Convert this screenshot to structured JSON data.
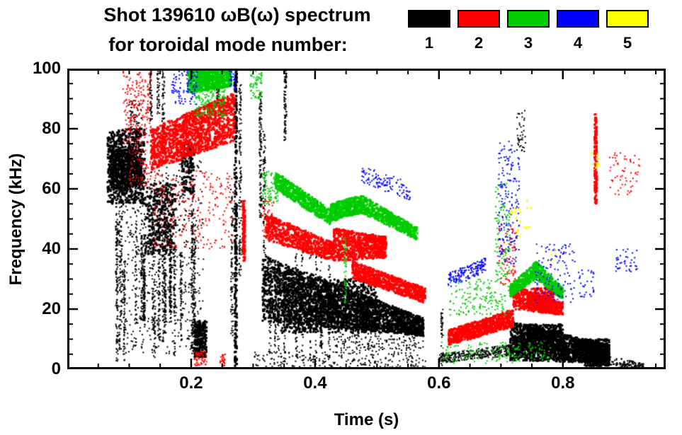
{
  "header": {
    "title_line1": "Shot 139610 ωB(ω) spectrum",
    "title_line2": "for toroidal mode number:"
  },
  "legend": {
    "items": [
      {
        "label": "1",
        "color": "#000000"
      },
      {
        "label": "2",
        "color": "#ff0000"
      },
      {
        "label": "3",
        "color": "#00cc00"
      },
      {
        "label": "4",
        "color": "#0000ff"
      },
      {
        "label": "5",
        "color": "#ffff00"
      }
    ]
  },
  "chart_data": {
    "type": "scatter",
    "title": "Shot 139610 ωB(ω) spectrum for toroidal mode number: 1 2 3 4 5",
    "xlabel": "Time (s)",
    "ylabel": "Frequency (kHz)",
    "xlim": [
      0.0,
      0.966
    ],
    "ylim": [
      0,
      100
    ],
    "xticks": {
      "major": [
        0.2,
        0.4,
        0.6,
        0.8
      ],
      "labels": [
        "0.2",
        "0.4",
        "0.6",
        "0.8"
      ],
      "minor_step": 0.05
    },
    "yticks": {
      "major": [
        0,
        20,
        40,
        60,
        80,
        100
      ],
      "labels": [
        "0",
        "20",
        "40",
        "60",
        "80",
        "100"
      ],
      "minor_step": 5
    },
    "modes": [
      {
        "n": 1,
        "color": "#000000"
      },
      {
        "n": 2,
        "color": "#ff0000"
      },
      {
        "n": 3,
        "color": "#00cc00"
      },
      {
        "n": 4,
        "color": "#0000ff"
      },
      {
        "n": 5,
        "color": "#ffff00"
      }
    ],
    "features": [
      {
        "mode": 1,
        "shape": "scatter",
        "t": [
          0.065,
          0.125
        ],
        "f": [
          55,
          80
        ],
        "n": 700,
        "s": 3
      },
      {
        "mode": 1,
        "shape": "scatter",
        "t": [
          0.07,
          0.12
        ],
        "f": [
          60,
          73
        ],
        "n": 500,
        "s": 3
      },
      {
        "mode": 1,
        "shape": "vlines",
        "t": [
          0.075,
          0.215
        ],
        "lines": 22,
        "fmin": [
          2,
          18
        ],
        "fmax": [
          35,
          78
        ],
        "ppl": 70,
        "s": 2
      },
      {
        "mode": 1,
        "shape": "scatter",
        "t": [
          0.08,
          0.22
        ],
        "f": [
          5,
          70
        ],
        "n": 600,
        "s": 2
      },
      {
        "mode": 1,
        "shape": "scatter",
        "t": [
          0.125,
          0.175
        ],
        "f": [
          38,
          62
        ],
        "n": 350,
        "s": 3
      },
      {
        "mode": 1,
        "shape": "vline",
        "t": 0.135,
        "f": [
          82,
          100
        ],
        "n": 60,
        "s": 2
      },
      {
        "mode": 1,
        "shape": "vline",
        "t": 0.155,
        "f": [
          80,
          100
        ],
        "n": 50,
        "s": 2
      },
      {
        "mode": 1,
        "shape": "vline",
        "t": 0.147,
        "f": [
          85,
          100
        ],
        "n": 40,
        "s": 2
      },
      {
        "mode": 1,
        "shape": "scatter",
        "t": [
          0.185,
          0.205
        ],
        "f": [
          58,
          75
        ],
        "n": 150,
        "s": 3
      },
      {
        "mode": 1,
        "shape": "scatter",
        "t": [
          0.205,
          0.225
        ],
        "f": [
          4,
          16
        ],
        "n": 260,
        "s": 3
      },
      {
        "mode": 1,
        "shape": "vline",
        "t": 0.243,
        "f": [
          88,
          100
        ],
        "n": 50,
        "s": 2
      },
      {
        "mode": 1,
        "shape": "vline",
        "t": 0.272,
        "f": [
          0,
          100
        ],
        "n": 280,
        "s": 3
      },
      {
        "mode": 1,
        "shape": "vline",
        "t": 0.279,
        "f": [
          30,
          95
        ],
        "n": 120,
        "s": 2
      },
      {
        "mode": 1,
        "shape": "vline",
        "t": 0.266,
        "f": [
          10,
          60
        ],
        "n": 80,
        "s": 2
      },
      {
        "mode": 1,
        "shape": "vline",
        "t": 0.312,
        "f": [
          50,
          92
        ],
        "n": 130,
        "s": 2
      },
      {
        "mode": 1,
        "shape": "vline",
        "t": 0.318,
        "f": [
          30,
          80
        ],
        "n": 80,
        "s": 2
      },
      {
        "mode": 1,
        "shape": "vline",
        "t": 0.352,
        "f": [
          76,
          100
        ],
        "n": 90,
        "s": 2
      },
      {
        "mode": 1,
        "shape": "band",
        "t": [
          0.315,
          0.575
        ],
        "flo": [
          16,
          11
        ],
        "fhi": [
          38,
          17
        ],
        "n": 2600,
        "s": 3
      },
      {
        "mode": 1,
        "shape": "scatter",
        "t": [
          0.345,
          0.5
        ],
        "f": [
          12,
          30
        ],
        "n": 900,
        "s": 3
      },
      {
        "mode": 1,
        "shape": "vlines",
        "t": [
          0.32,
          0.43
        ],
        "lines": 12,
        "fmin": [
          2,
          8
        ],
        "fmax": [
          25,
          40
        ],
        "ppl": 40,
        "s": 2
      },
      {
        "mode": 1,
        "shape": "scatter",
        "t": [
          0.3,
          0.58
        ],
        "f": [
          0,
          6
        ],
        "n": 260,
        "s": 2
      },
      {
        "mode": 1,
        "shape": "scatter",
        "t": [
          0.43,
          0.575
        ],
        "f": [
          6,
          13
        ],
        "n": 200,
        "s": 2
      },
      {
        "mode": 1,
        "shape": "band",
        "t": [
          0.6,
          0.74
        ],
        "flo": [
          2,
          5
        ],
        "fhi": [
          5,
          9
        ],
        "n": 420,
        "s": 2
      },
      {
        "mode": 1,
        "shape": "band",
        "t": [
          0.715,
          0.875
        ],
        "flo": [
          3,
          2
        ],
        "fhi": [
          16,
          8
        ],
        "n": 1600,
        "s": 3
      },
      {
        "mode": 1,
        "shape": "scatter",
        "t": [
          0.73,
          0.8
        ],
        "f": [
          6,
          15
        ],
        "n": 500,
        "s": 3
      },
      {
        "mode": 1,
        "shape": "scatter",
        "t": [
          0.835,
          0.875
        ],
        "f": [
          1,
          10
        ],
        "n": 400,
        "s": 3
      },
      {
        "mode": 1,
        "shape": "band",
        "t": [
          0.86,
          0.93
        ],
        "flo": [
          0.5,
          0.5
        ],
        "fhi": [
          5,
          2
        ],
        "n": 150,
        "s": 2
      },
      {
        "mode": 1,
        "shape": "scatter",
        "t": [
          0.725,
          0.74
        ],
        "f": [
          72,
          86
        ],
        "n": 40,
        "s": 2
      },
      {
        "mode": 1,
        "shape": "vline",
        "t": 0.605,
        "f": [
          1,
          20
        ],
        "n": 40,
        "s": 2
      },
      {
        "mode": 1,
        "shape": "scatter",
        "t": [
          0.1,
          0.12
        ],
        "f": [
          78,
          90
        ],
        "n": 60,
        "s": 2
      },
      {
        "mode": 2,
        "shape": "scatter",
        "t": [
          0.09,
          0.135
        ],
        "f": [
          75,
          100
        ],
        "n": 200,
        "s": 2
      },
      {
        "mode": 2,
        "shape": "band",
        "t": [
          0.135,
          0.27
        ],
        "flo": [
          66,
          76
        ],
        "fhi": [
          80,
          92
        ],
        "n": 1400,
        "s": 3
      },
      {
        "mode": 2,
        "shape": "scatter",
        "t": [
          0.14,
          0.27
        ],
        "f": [
          40,
          66
        ],
        "n": 250,
        "s": 2
      },
      {
        "mode": 2,
        "shape": "scatter",
        "t": [
          0.1,
          0.14
        ],
        "f": [
          60,
          75
        ],
        "n": 80,
        "s": 2
      },
      {
        "mode": 2,
        "shape": "vline",
        "t": 0.285,
        "f": [
          36,
          56
        ],
        "n": 140,
        "s": 3
      },
      {
        "mode": 2,
        "shape": "band",
        "t": [
          0.32,
          0.43
        ],
        "flo": [
          43,
          36
        ],
        "fhi": [
          52,
          42
        ],
        "n": 650,
        "s": 3
      },
      {
        "mode": 2,
        "shape": "band",
        "t": [
          0.43,
          0.515
        ],
        "flo": [
          36,
          37
        ],
        "fhi": [
          47,
          44
        ],
        "n": 800,
        "s": 3
      },
      {
        "mode": 2,
        "shape": "band",
        "t": [
          0.46,
          0.578
        ],
        "flo": [
          30,
          22
        ],
        "fhi": [
          36,
          27
        ],
        "n": 750,
        "s": 3
      },
      {
        "mode": 2,
        "shape": "scatter",
        "t": [
          0.205,
          0.225
        ],
        "f": [
          1,
          6
        ],
        "n": 60,
        "s": 2
      },
      {
        "mode": 2,
        "shape": "scatter",
        "t": [
          0.245,
          0.255
        ],
        "f": [
          1,
          5
        ],
        "n": 30,
        "s": 2
      },
      {
        "mode": 2,
        "shape": "band",
        "t": [
          0.615,
          0.72
        ],
        "flo": [
          8,
          14
        ],
        "fhi": [
          13,
          20
        ],
        "n": 800,
        "s": 3
      },
      {
        "mode": 2,
        "shape": "band",
        "t": [
          0.72,
          0.8
        ],
        "flo": [
          20,
          18
        ],
        "fhi": [
          28,
          22
        ],
        "n": 600,
        "s": 3
      },
      {
        "mode": 2,
        "shape": "scatter",
        "t": [
          0.745,
          0.785
        ],
        "f": [
          20,
          27
        ],
        "n": 300,
        "s": 3
      },
      {
        "mode": 2,
        "shape": "vline",
        "t": 0.853,
        "f": [
          55,
          85
        ],
        "n": 180,
        "s": 3
      },
      {
        "mode": 2,
        "shape": "scatter",
        "t": [
          0.875,
          0.925
        ],
        "f": [
          58,
          72
        ],
        "n": 60,
        "s": 2
      },
      {
        "mode": 2,
        "shape": "scatter",
        "t": [
          0.695,
          0.725
        ],
        "f": [
          28,
          48
        ],
        "n": 90,
        "s": 2
      },
      {
        "mode": 2,
        "shape": "scatter",
        "t": [
          0.315,
          0.335
        ],
        "f": [
          44,
          56
        ],
        "n": 60,
        "s": 2
      },
      {
        "mode": 3,
        "shape": "band",
        "t": [
          0.195,
          0.265
        ],
        "flo": [
          92,
          94
        ],
        "fhi": [
          100,
          100
        ],
        "n": 700,
        "s": 3
      },
      {
        "mode": 3,
        "shape": "scatter",
        "t": [
          0.205,
          0.255
        ],
        "f": [
          84,
          93
        ],
        "n": 150,
        "s": 2
      },
      {
        "mode": 3,
        "shape": "scatter",
        "t": [
          0.315,
          0.34
        ],
        "f": [
          55,
          66
        ],
        "n": 90,
        "s": 2
      },
      {
        "mode": 3,
        "shape": "band",
        "t": [
          0.335,
          0.425
        ],
        "flo": [
          60,
          48
        ],
        "fhi": [
          66,
          53
        ],
        "n": 550,
        "s": 3
      },
      {
        "mode": 3,
        "shape": "band",
        "t": [
          0.425,
          0.475
        ],
        "flo": [
          49,
          52
        ],
        "fhi": [
          55,
          58
        ],
        "n": 450,
        "s": 3
      },
      {
        "mode": 3,
        "shape": "band",
        "t": [
          0.475,
          0.565
        ],
        "flo": [
          52,
          43
        ],
        "fhi": [
          58,
          47
        ],
        "n": 550,
        "s": 3
      },
      {
        "mode": 3,
        "shape": "scatter",
        "t": [
          0.615,
          0.715
        ],
        "f": [
          18,
          30
        ],
        "n": 160,
        "s": 2
      },
      {
        "mode": 3,
        "shape": "band",
        "t": [
          0.715,
          0.757
        ],
        "flo": [
          24,
          30
        ],
        "fhi": [
          28,
          36
        ],
        "n": 300,
        "s": 3
      },
      {
        "mode": 3,
        "shape": "band",
        "t": [
          0.757,
          0.8
        ],
        "flo": [
          30,
          23
        ],
        "fhi": [
          36,
          27
        ],
        "n": 280,
        "s": 3
      },
      {
        "mode": 3,
        "shape": "scatter",
        "t": [
          0.6,
          0.78
        ],
        "f": [
          2,
          9
        ],
        "n": 160,
        "s": 2
      },
      {
        "mode": 3,
        "shape": "scatter",
        "t": [
          0.69,
          0.715
        ],
        "f": [
          30,
          62
        ],
        "n": 100,
        "s": 2
      },
      {
        "mode": 3,
        "shape": "scatter",
        "t": [
          0.295,
          0.315
        ],
        "f": [
          90,
          100
        ],
        "n": 60,
        "s": 2
      },
      {
        "mode": 3,
        "shape": "vline",
        "t": 0.449,
        "f": [
          22,
          45
        ],
        "n": 50,
        "s": 2
      },
      {
        "mode": 4,
        "shape": "scatter",
        "t": [
          0.168,
          0.21
        ],
        "f": [
          88,
          100
        ],
        "n": 100,
        "s": 2
      },
      {
        "mode": 4,
        "shape": "scatter",
        "t": [
          0.262,
          0.272
        ],
        "f": [
          93,
          100
        ],
        "n": 25,
        "s": 2
      },
      {
        "mode": 4,
        "shape": "band",
        "t": [
          0.475,
          0.555
        ],
        "flo": [
          62,
          56
        ],
        "fhi": [
          68,
          62
        ],
        "n": 110,
        "s": 2
      },
      {
        "mode": 4,
        "shape": "band",
        "t": [
          0.615,
          0.675
        ],
        "flo": [
          27,
          32
        ],
        "fhi": [
          32,
          37
        ],
        "n": 160,
        "s": 2
      },
      {
        "mode": 4,
        "shape": "scatter",
        "t": [
          0.695,
          0.73
        ],
        "f": [
          35,
          76
        ],
        "n": 170,
        "s": 2
      },
      {
        "mode": 4,
        "shape": "scatter",
        "t": [
          0.755,
          0.82
        ],
        "f": [
          22,
          42
        ],
        "n": 120,
        "s": 2
      },
      {
        "mode": 4,
        "shape": "scatter",
        "t": [
          0.885,
          0.92
        ],
        "f": [
          32,
          40
        ],
        "n": 40,
        "s": 2
      },
      {
        "mode": 4,
        "shape": "scatter",
        "t": [
          0.825,
          0.85
        ],
        "f": [
          24,
          33
        ],
        "n": 30,
        "s": 2
      },
      {
        "mode": 5,
        "shape": "scatter",
        "t": [
          0.715,
          0.75
        ],
        "f": [
          44,
          56
        ],
        "n": 18,
        "s": 3
      },
      {
        "mode": 5,
        "shape": "scatter",
        "t": [
          0.845,
          0.86
        ],
        "f": [
          66,
          73
        ],
        "n": 8,
        "s": 3
      },
      {
        "mode": 5,
        "shape": "scatter",
        "t": [
          0.77,
          0.79
        ],
        "f": [
          34,
          40
        ],
        "n": 6,
        "s": 2
      }
    ]
  }
}
